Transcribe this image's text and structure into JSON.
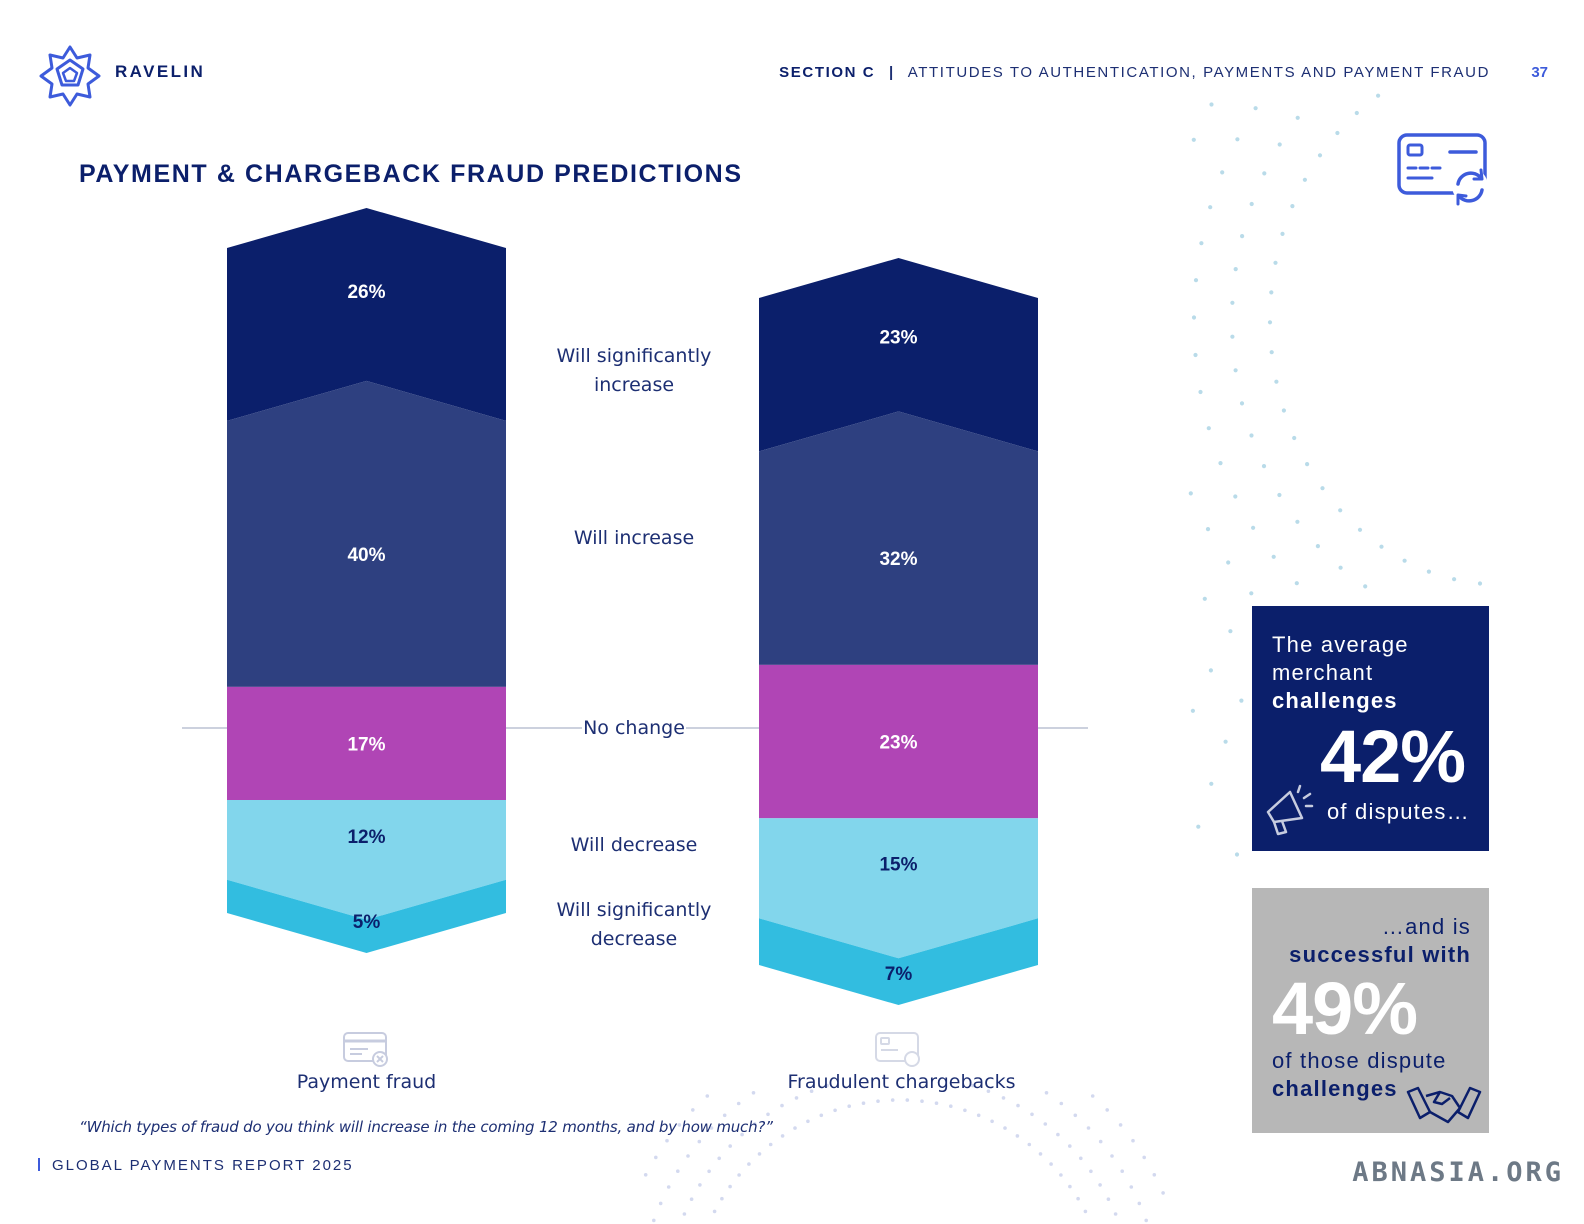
{
  "header": {
    "brand": "RAVELIN",
    "section_label": "SECTION C",
    "section_separator": "|",
    "section_title": "ATTITUDES TO AUTHENTICATION, PAYMENTS AND PAYMENT FRAUD",
    "page_number": "37"
  },
  "title": "PAYMENT & CHARGEBACK FRAUD PREDICTIONS",
  "question": "“Which types of fraud do you think will increase in the coming 12 months, and by how much?”",
  "footer": {
    "report_name": "GLOBAL PAYMENTS REPORT 2025"
  },
  "colors": {
    "significantly_increase": "#0b1f6b",
    "increase": "#2e4080",
    "no_change": "#b045b5",
    "decrease": "#82d6ec",
    "significantly_decrease": "#32bde0",
    "brand_blue": "#3d5bdb"
  },
  "icons": [
    "ravelin-star-logo-icon",
    "card-refresh-icon",
    "card-declined-icon",
    "chargeback-card-icon",
    "megaphone-icon",
    "handshake-icon"
  ],
  "chart_data": {
    "type": "bar",
    "stacked": true,
    "categories": [
      "Payment fraud",
      "Fraudulent chargebacks"
    ],
    "series": [
      {
        "name": "Will significantly increase",
        "values": [
          26,
          23
        ],
        "labels": [
          "26%",
          "23%"
        ],
        "color": "#0b1f6b",
        "text_color": "#ffffff"
      },
      {
        "name": "Will increase",
        "values": [
          40,
          32
        ],
        "labels": [
          "40%",
          "32%"
        ],
        "color": "#2e4080",
        "text_color": "#ffffff"
      },
      {
        "name": "No change",
        "values": [
          17,
          23
        ],
        "labels": [
          "17%",
          "23%"
        ],
        "color": "#b045b5",
        "text_color": "#ffffff"
      },
      {
        "name": "Will decrease",
        "values": [
          12,
          15
        ],
        "labels": [
          "12%",
          "15%"
        ],
        "color": "#82d6ec",
        "text_color": "#0b1f6b"
      },
      {
        "name": "Will significantly decrease",
        "values": [
          5,
          7
        ],
        "labels": [
          "5%",
          "7%"
        ],
        "color": "#32bde0",
        "text_color": "#0b1f6b"
      }
    ],
    "center_labels": [
      [
        "Will significantly",
        "increase"
      ],
      [
        "Will increase"
      ],
      [
        "No change"
      ],
      [
        "Will decrease"
      ],
      [
        "Will significantly",
        "decrease"
      ]
    ],
    "baseline": "No change",
    "unit": "%",
    "legend": "center-between-bars"
  },
  "callouts": {
    "box1": {
      "line1": "The average",
      "line2": "merchant",
      "line3": "challenges",
      "value": "42%",
      "tail": "of disputes…"
    },
    "box2": {
      "line1": "…and is",
      "line2": "successful with",
      "value": "49%",
      "line3": "of those dispute",
      "line4": "challenges"
    }
  },
  "watermark": "ABNASIA.ORG"
}
